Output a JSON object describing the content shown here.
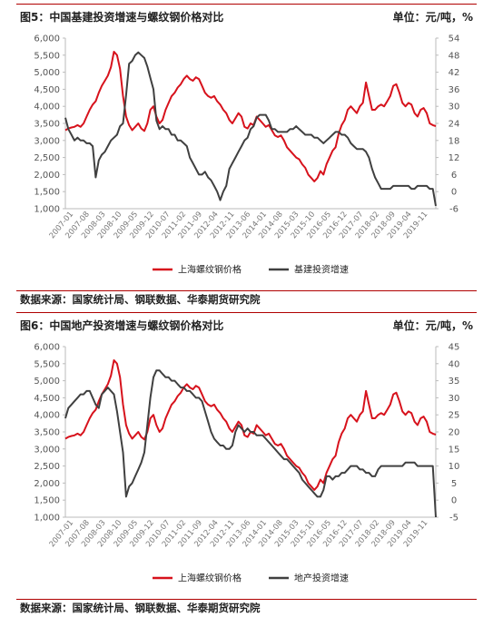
{
  "figures": [
    {
      "title": "图5：中国基建投资增速与螺纹钢价格对比",
      "unit": "单位：元/吨，%",
      "source": "数据来源：国家统计局、钢联数据、华泰期货研究院"
    },
    {
      "title": "图6：中国地产投资增速与螺纹钢价格对比",
      "unit": "单位：元/吨，%",
      "source": "数据来源：国家统计局、钢联数据、华泰期货研究院"
    }
  ],
  "colors": {
    "steel": "#d7121c",
    "invest": "#404040",
    "rule": "#b00000"
  },
  "chart_data": [
    {
      "type": "line",
      "x_labels": [
        "2007-01",
        "2007-08",
        "2008-03",
        "2008-10",
        "2009-05",
        "2009-12",
        "2010-07",
        "2011-02",
        "2011-09",
        "2012-04",
        "2012-11",
        "2013-06",
        "2014-01",
        "2014-08",
        "2015-03",
        "2015-10",
        "2016-05",
        "2016-12",
        "2017-07",
        "2018-02",
        "2018-09",
        "2019-04",
        "2019-11"
      ],
      "ylim_left": [
        1000,
        6000
      ],
      "yticks_left": [
        "1,000",
        "1,500",
        "2,000",
        "2,500",
        "3,000",
        "3,500",
        "4,000",
        "4,500",
        "5,000",
        "5,500",
        "6,000"
      ],
      "ylim_right": [
        -6,
        54
      ],
      "yticks_right": [
        "-6",
        "0",
        "6",
        "12",
        "18",
        "24",
        "30",
        "36",
        "42",
        "48",
        "54"
      ],
      "legend": [
        "上海螺纹钢价格",
        "基建投资增速"
      ],
      "series": [
        {
          "name": "上海螺纹钢价格",
          "axis": "left",
          "values": [
            3300,
            3350,
            3380,
            3400,
            3450,
            3400,
            3500,
            3700,
            3900,
            4050,
            4150,
            4400,
            4600,
            4750,
            4900,
            5150,
            5600,
            5500,
            5100,
            4300,
            3700,
            3450,
            3300,
            3400,
            3500,
            3350,
            3280,
            3500,
            3900,
            4000,
            3700,
            3500,
            3600,
            3900,
            4100,
            4300,
            4400,
            4550,
            4650,
            4800,
            4900,
            4800,
            4750,
            4850,
            4800,
            4600,
            4400,
            4300,
            4250,
            4300,
            4150,
            4050,
            3900,
            3800,
            3600,
            3500,
            3650,
            3800,
            3700,
            3400,
            3350,
            3500,
            3450,
            3700,
            3600,
            3500,
            3400,
            3450,
            3300,
            3150,
            3100,
            3150,
            3000,
            2800,
            2700,
            2600,
            2500,
            2450,
            2300,
            2200,
            2000,
            1900,
            1800,
            1900,
            2100,
            2000,
            2300,
            2500,
            2700,
            2800,
            3200,
            3450,
            3600,
            3900,
            4000,
            3900,
            3800,
            4000,
            4100,
            4700,
            4300,
            3900,
            3900,
            4000,
            4050,
            4000,
            4150,
            4300,
            4600,
            4650,
            4400,
            4100,
            4000,
            4100,
            4050,
            3800,
            3700,
            3900,
            3950,
            3800,
            3500,
            3450,
            3420
          ]
        },
        {
          "name": "基建投资增速",
          "axis": "right",
          "values": [
            26,
            22,
            20,
            18,
            19,
            18,
            18,
            17,
            17,
            16,
            5,
            11,
            13,
            14,
            16,
            18,
            19,
            20,
            23,
            24,
            34,
            45,
            46,
            48,
            49,
            48,
            47,
            44,
            40,
            36,
            25,
            22,
            23,
            22,
            22,
            20,
            20,
            18,
            18,
            17,
            16,
            12,
            10,
            8,
            6,
            6,
            7,
            5,
            4,
            2,
            0,
            -3,
            0,
            2,
            8,
            10,
            12,
            14,
            16,
            18,
            19,
            22,
            23,
            26,
            27,
            27,
            27,
            25,
            22,
            22,
            21,
            21,
            21,
            21,
            22,
            22,
            23,
            22,
            21,
            20,
            20,
            20,
            19,
            19,
            18,
            17,
            18,
            19,
            20,
            21,
            21,
            20,
            20,
            19,
            17,
            16,
            15,
            15,
            15,
            14,
            12,
            8,
            5,
            3,
            1,
            1,
            1,
            1,
            2,
            2,
            2,
            2,
            2,
            2,
            1,
            1,
            2,
            2,
            2,
            2,
            1,
            1,
            -5
          ]
        }
      ]
    },
    {
      "type": "line",
      "x_labels": [
        "2007-01",
        "2007-08",
        "2008-03",
        "2008-10",
        "2009-05",
        "2009-12",
        "2010-07",
        "2011-02",
        "2011-09",
        "2012-04",
        "2012-11",
        "2013-06",
        "2014-01",
        "2014-08",
        "2015-03",
        "2015-10",
        "2016-05",
        "2016-12",
        "2017-07",
        "2018-02",
        "2018-09",
        "2019-04",
        "2019-11"
      ],
      "ylim_left": [
        1000,
        6000
      ],
      "yticks_left": [
        "1,000",
        "1,500",
        "2,000",
        "2,500",
        "3,000",
        "3,500",
        "4,000",
        "4,500",
        "5,000",
        "5,500",
        "6,000"
      ],
      "ylim_right": [
        -5,
        45
      ],
      "yticks_right": [
        "-5",
        "0",
        "5",
        "10",
        "15",
        "20",
        "25",
        "30",
        "35",
        "40",
        "45"
      ],
      "legend": [
        "上海螺纹钢价格",
        "地产投资增速"
      ],
      "series": [
        {
          "name": "上海螺纹钢价格",
          "axis": "left",
          "values": [
            3300,
            3350,
            3380,
            3400,
            3450,
            3400,
            3500,
            3700,
            3900,
            4050,
            4150,
            4400,
            4600,
            4750,
            4900,
            5150,
            5600,
            5500,
            5100,
            4300,
            3700,
            3450,
            3300,
            3400,
            3500,
            3350,
            3280,
            3500,
            3900,
            4000,
            3700,
            3500,
            3600,
            3900,
            4100,
            4300,
            4400,
            4550,
            4650,
            4800,
            4900,
            4800,
            4750,
            4850,
            4800,
            4600,
            4400,
            4300,
            4250,
            4300,
            4150,
            4050,
            3900,
            3800,
            3600,
            3500,
            3650,
            3800,
            3700,
            3400,
            3350,
            3500,
            3450,
            3700,
            3600,
            3500,
            3400,
            3450,
            3300,
            3150,
            3100,
            3150,
            3000,
            2800,
            2700,
            2600,
            2500,
            2450,
            2300,
            2200,
            2000,
            1900,
            1800,
            1900,
            2100,
            2000,
            2300,
            2500,
            2700,
            2800,
            3200,
            3450,
            3600,
            3900,
            4000,
            3900,
            3800,
            4000,
            4100,
            4700,
            4300,
            3900,
            3900,
            4000,
            4050,
            4000,
            4150,
            4300,
            4600,
            4650,
            4400,
            4100,
            4000,
            4100,
            4050,
            3800,
            3700,
            3900,
            3950,
            3800,
            3500,
            3450,
            3420
          ]
        },
        {
          "name": "地产投资增速",
          "axis": "right",
          "values": [
            24,
            27,
            28,
            29,
            30,
            31,
            31,
            32,
            32,
            30,
            28,
            27,
            31,
            32,
            33,
            32,
            31,
            26,
            20,
            14,
            1,
            4,
            5,
            7,
            9,
            11,
            14,
            22,
            30,
            36,
            38,
            38,
            37,
            36,
            36,
            35,
            35,
            34,
            33,
            33,
            32,
            32,
            31,
            30,
            30,
            29,
            26,
            23,
            20,
            18,
            17,
            16,
            16,
            15,
            15,
            16,
            20,
            22,
            21,
            20,
            21,
            20,
            20,
            19,
            19,
            19,
            18,
            17,
            16,
            15,
            14,
            13,
            12,
            12,
            11,
            10,
            9,
            8,
            6,
            5,
            4,
            3,
            2,
            1,
            1,
            3,
            7,
            7,
            6,
            7,
            7,
            8,
            8,
            9,
            10,
            10,
            10,
            9,
            9,
            8,
            8,
            7,
            7,
            9,
            10,
            10,
            10,
            10,
            10,
            10,
            10,
            10,
            11,
            11,
            11,
            11,
            10,
            10,
            10,
            10,
            10,
            10,
            -5
          ]
        }
      ]
    }
  ]
}
